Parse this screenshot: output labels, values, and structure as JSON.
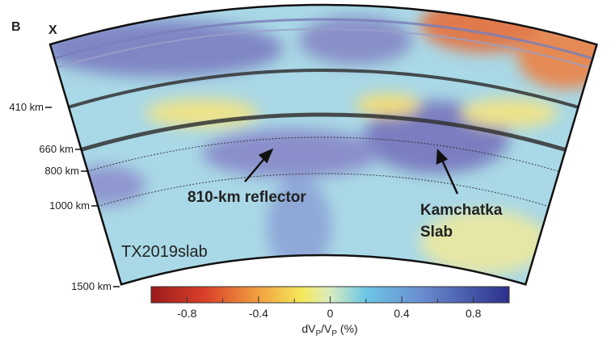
{
  "panel_label": "B",
  "profile_start": "X",
  "depth_labels": [
    "410 km",
    "660 km",
    "800 km",
    "1000 km",
    "1500 km"
  ],
  "annotations": {
    "reflector": "810-km reflector",
    "slab_line1": "Kamchatka",
    "slab_line2": "Slab"
  },
  "model_name": "TX2019slab",
  "colorbar": {
    "lim": [
      -1,
      1
    ],
    "ticks": [
      -0.8,
      -0.4,
      0,
      0.4,
      0.8
    ],
    "label": {
      "base1": "dV",
      "sub1": "P",
      "base2": "/V",
      "sub2": "P",
      "unit": " (%)"
    }
  }
}
